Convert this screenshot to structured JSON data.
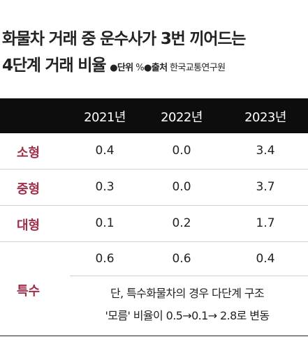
{
  "title": {
    "line1": "화물차 거래 중 운수사가 3번 끼어드는",
    "line2": "4단계 거래 비율",
    "unit_label": "●단위",
    "unit_value": "%",
    "source_label": "●출처",
    "source_value": "한국교통연구원"
  },
  "table": {
    "columns": [
      "2021년",
      "2022년",
      "2023년"
    ],
    "rows": [
      {
        "label": "소형",
        "values": [
          "0.4",
          "0.0",
          "3.4"
        ]
      },
      {
        "label": "중형",
        "values": [
          "0.3",
          "0.0",
          "3.7"
        ]
      },
      {
        "label": "대형",
        "values": [
          "0.1",
          "0.2",
          "1.7"
        ]
      },
      {
        "label": "특수",
        "values": [
          "0.6",
          "0.6",
          "0.4"
        ]
      }
    ],
    "note_line1": "단, 특수화물차의 경우 다단계 구조",
    "note_line2": "'모름' 비율이 0.5→0.1→ 2.8로 변동"
  },
  "colors": {
    "header_bg": "#0d0d0d",
    "label": "#a0304a"
  }
}
